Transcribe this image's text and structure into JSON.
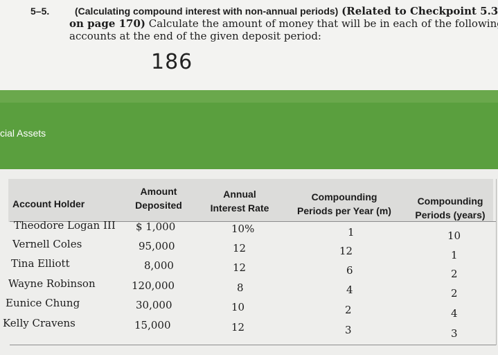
{
  "problem": {
    "number": "5–5.",
    "title_bold": "(Calculating compound interest with non-annual periods)",
    "line1_tail": "(Related to Checkpoint 5.3",
    "line2_bold": "on page 170)",
    "line2_tail": "Calculate the amount of money that will be in each of the following",
    "line3": "accounts at the end of the given deposit period:"
  },
  "page_number": "186",
  "green_panel": {
    "label": "cial Assets"
  },
  "table": {
    "headers": {
      "holder": [
        "Account Holder"
      ],
      "amount": [
        "Amount",
        "Deposited"
      ],
      "rate": [
        "Annual",
        "Interest Rate"
      ],
      "periods_per_year": [
        "Compounding",
        "Periods per Year (m)"
      ],
      "periods": [
        "Compounding",
        "Periods (years)"
      ]
    },
    "rows": [
      {
        "holder": "Theodore Logan III",
        "amount": "$ 1,000",
        "rate": "10%",
        "m": "1",
        "years": "10"
      },
      {
        "holder": "Vernell Coles",
        "amount": "95,000",
        "rate": "12",
        "m": "12",
        "years": "1"
      },
      {
        "holder": "Tina Elliott",
        "amount": "8,000",
        "rate": "12",
        "m": "6",
        "years": "2"
      },
      {
        "holder": "Wayne Robinson",
        "amount": "120,000",
        "rate": "8",
        "m": "4",
        "years": "2"
      },
      {
        "holder": "Eunice Chung",
        "amount": "30,000",
        "rate": "10",
        "m": "2",
        "years": "4"
      },
      {
        "holder": "Kelly Cravens",
        "amount": "15,000",
        "rate": "12",
        "m": "3",
        "years": "3"
      }
    ]
  }
}
